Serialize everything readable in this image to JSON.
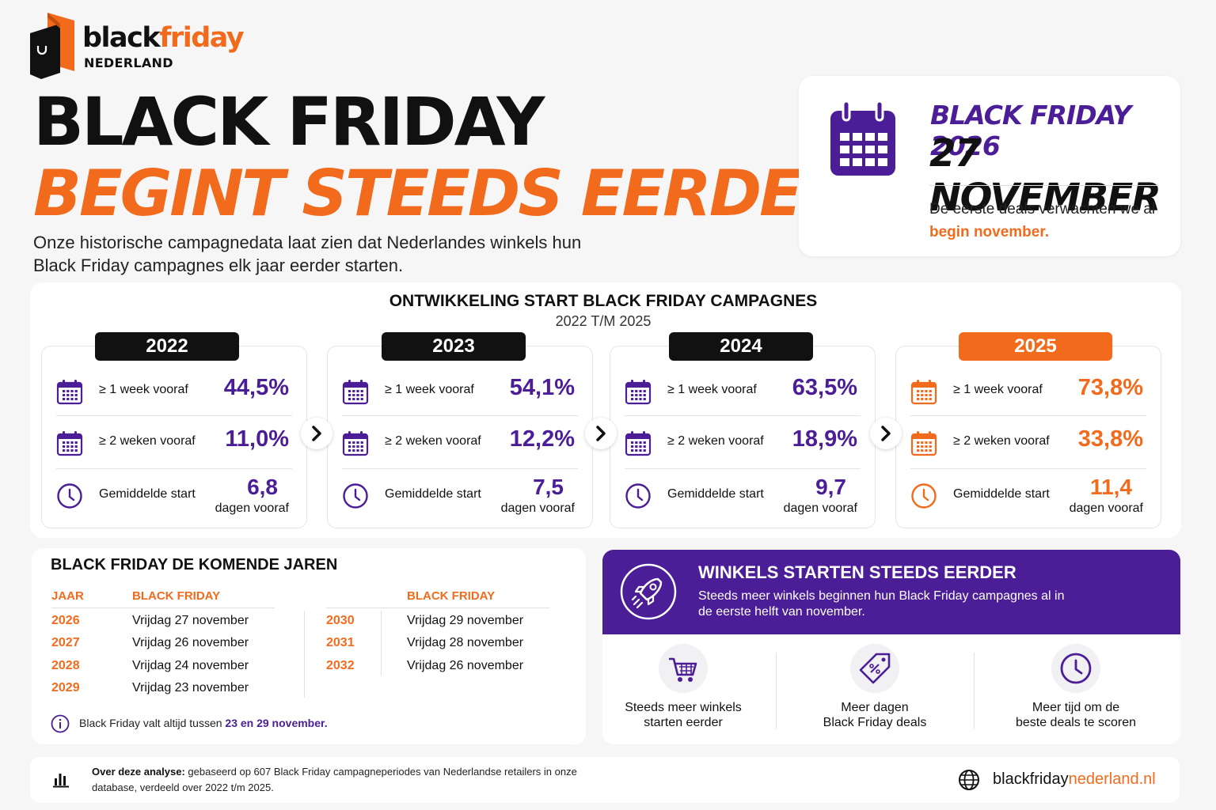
{
  "brand": {
    "word1": "black",
    "word2": "friday",
    "sub": "NEDERLAND",
    "colors": {
      "orange": "#f26b1d",
      "purple": "#4b1d96",
      "black": "#111111"
    }
  },
  "hero": {
    "line1": "BLACK FRIDAY",
    "line2": "BEGINT STEEDS EERDER",
    "intro": "Onze historische campagnedata laat zien dat Nederlandes winkels hun Black Friday campagnes elk jaar eerder starten."
  },
  "date_card": {
    "icon": "calendar-icon",
    "year_line": "BLACK FRIDAY 2026",
    "date_line": "27 NOVEMBER",
    "note_prefix": "De eerste deals verwachten we al ",
    "note_highlight": "begin november."
  },
  "development": {
    "title": "ONTWIKKELING START BLACK FRIDAY CAMPAGNES",
    "subtitle": "2022 T/M 2025",
    "labels": {
      "week1": "≥ 1 week vooraf",
      "week2": "≥ 2 weken vooraf",
      "avg": "Gemiddelde start",
      "unit": "dagen vooraf"
    },
    "years": [
      {
        "year": "2022",
        "week1": "44,5%",
        "week2": "11,0%",
        "avg": "6,8",
        "highlight": false
      },
      {
        "year": "2023",
        "week1": "54,1%",
        "week2": "12,2%",
        "avg": "7,5",
        "highlight": false
      },
      {
        "year": "2024",
        "week1": "63,5%",
        "week2": "18,9%",
        "avg": "9,7",
        "highlight": false
      },
      {
        "year": "2025",
        "week1": "73,8%",
        "week2": "33,8%",
        "avg": "11,4",
        "highlight": true
      }
    ]
  },
  "upcoming": {
    "title": "BLACK FRIDAY DE KOMENDE JAREN",
    "head_year": "JAAR",
    "head_bf": "BLACK FRIDAY",
    "left": [
      {
        "year": "2026",
        "date": "Vrijdag 27 november"
      },
      {
        "year": "2027",
        "date": "Vrijdag 26 november"
      },
      {
        "year": "2028",
        "date": "Vrijdag 24 november"
      },
      {
        "year": "2029",
        "date": "Vrijdag 23 november"
      }
    ],
    "right": [
      {
        "year": "2030",
        "date": "Vrijdag 29 november"
      },
      {
        "year": "2031",
        "date": "Vrijdag 28 november"
      },
      {
        "year": "2032",
        "date": "Vrijdag 26 november"
      }
    ],
    "info_prefix": "Black Friday valt altijd tussen ",
    "info_highlight": "23 en 29 november."
  },
  "shops": {
    "title": "WINKELS STARTEN STEEDS EERDER",
    "text": "Steeds meer winkels beginnen hun Black Friday campagnes al in de eerste helft van november.",
    "features": [
      {
        "icon": "shopping-cart-icon",
        "line1": "Steeds meer winkels",
        "line2": "starten eerder"
      },
      {
        "icon": "discount-tag-icon",
        "line1": "Meer dagen",
        "line2": "Black Friday deals"
      },
      {
        "icon": "clock-icon",
        "line1": "Meer tijd om de",
        "line2": "beste deals te scoren"
      }
    ]
  },
  "footer": {
    "label": "Over deze analyse:",
    "text": " gebaseerd op 607 Black Friday campagneperiodes van Nederlandse retailers in onze database, verdeeld over 2022 t/m 2025.",
    "site1": "blackfriday",
    "site2": "nederland.nl"
  }
}
